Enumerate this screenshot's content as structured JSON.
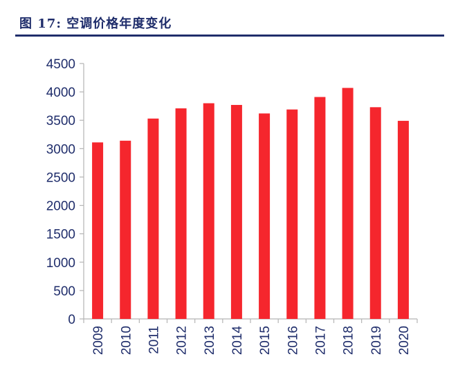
{
  "figure": {
    "label": "图 17:",
    "caption": "空调价格年度变化"
  },
  "colors": {
    "bar": "#f5262d",
    "axis": "#b4b4b4",
    "text": "#1f2d6b"
  },
  "chart_data": {
    "type": "bar",
    "title": "",
    "xlabel": "",
    "ylabel": "",
    "categories": [
      "2009",
      "2010",
      "2011",
      "2012",
      "2013",
      "2014",
      "2015",
      "2016",
      "2017",
      "2018",
      "2019",
      "2020"
    ],
    "values": [
      3110,
      3140,
      3530,
      3710,
      3800,
      3770,
      3620,
      3690,
      3910,
      4070,
      3730,
      3490
    ],
    "ylim": [
      0,
      4500
    ],
    "yticks": [
      0,
      500,
      1000,
      1500,
      2000,
      2500,
      3000,
      3500,
      4000,
      4500
    ],
    "grid": false,
    "legend": "none"
  }
}
